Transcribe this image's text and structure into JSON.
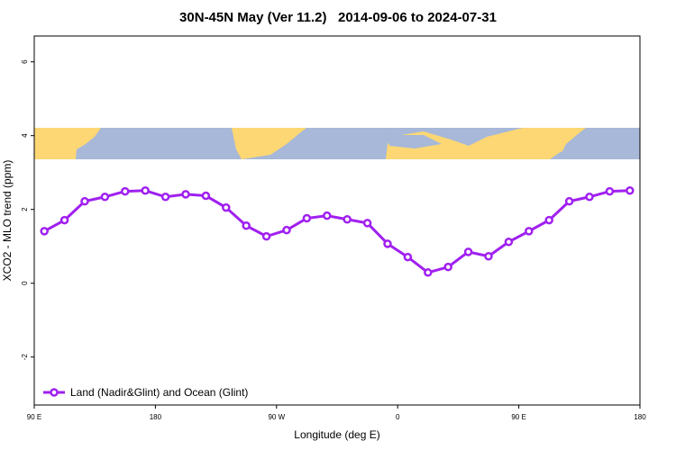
{
  "chart_data": {
    "type": "line",
    "title": "30N-45N May (Ver 11.2)   2014-09-06 to 2024-07-31",
    "x_label": "Longitude (deg E)",
    "y_label": "XCO2 - MLO trend (ppm)",
    "x": [
      97.5,
      112.5,
      127.5,
      142.5,
      157.5,
      172.5,
      187.5,
      202.5,
      217.5,
      232.5,
      247.5,
      262.5,
      277.5,
      292.5,
      307.5,
      322.5,
      337.5,
      352.5,
      367.5,
      382.5,
      397.5,
      412.5,
      427.5,
      442.5,
      457.5,
      472.5,
      487.5,
      502.5,
      517.5,
      532.5
    ],
    "series": [
      {
        "name": "Land (Nadir&Glint) and Ocean (Glint)",
        "color": "#a020f0",
        "values": [
          1.41,
          1.71,
          2.22,
          2.34,
          2.49,
          2.51,
          2.34,
          2.41,
          2.37,
          2.05,
          1.56,
          1.27,
          1.44,
          1.76,
          1.83,
          1.73,
          1.63,
          1.07,
          0.71,
          0.29,
          0.44,
          0.85,
          0.73,
          1.12,
          1.41,
          1.71,
          2.22,
          2.34,
          2.49,
          2.51
        ]
      }
    ],
    "xlim": [
      90,
      540
    ],
    "xticks": [
      {
        "value": 90,
        "label": "90 E"
      },
      180,
      {
        "value": 270,
        "label": "90 W"
      },
      {
        "value": 360,
        "label": "0"
      },
      {
        "value": 450,
        "label": "90 E"
      },
      {
        "value": 540,
        "label": "180"
      }
    ],
    "ylim": [
      -3.3,
      6.7
    ],
    "yticks": [
      -2,
      0,
      2,
      4,
      6
    ],
    "legend_position": "bottom-left"
  }
}
